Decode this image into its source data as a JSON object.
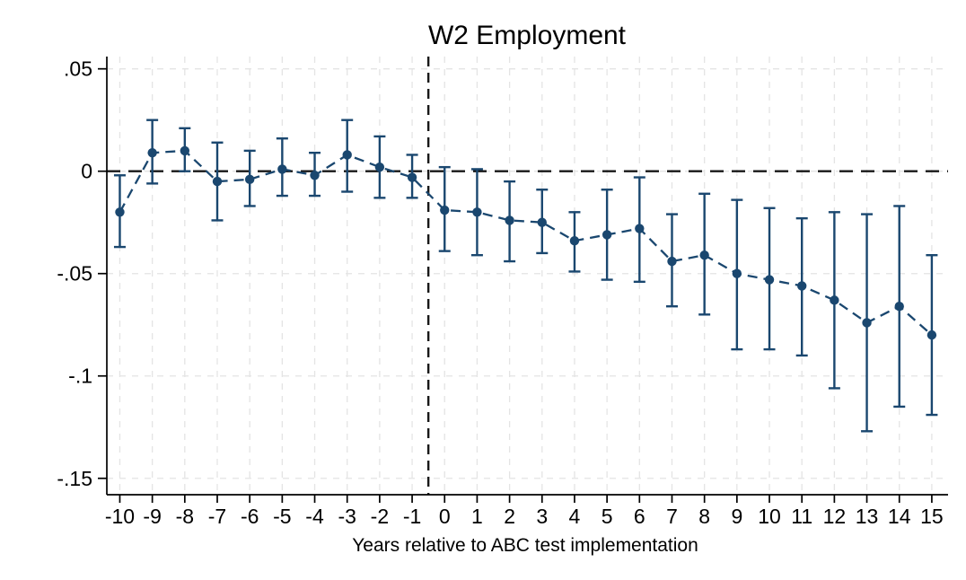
{
  "chart_data": {
    "type": "line",
    "title": "W2 Employment",
    "xlabel": "Years relative to ABC test implementation",
    "ylabel": "",
    "x": [
      -10,
      -9,
      -8,
      -7,
      -6,
      -5,
      -4,
      -3,
      -2,
      -1,
      0,
      1,
      2,
      3,
      4,
      5,
      6,
      7,
      8,
      9,
      10,
      11,
      12,
      13,
      14,
      15
    ],
    "series": [
      {
        "name": "Point estimate",
        "values": [
          -0.02,
          0.009,
          0.01,
          -0.005,
          -0.004,
          0.001,
          -0.002,
          0.008,
          0.002,
          -0.003,
          -0.019,
          -0.02,
          -0.024,
          -0.025,
          -0.034,
          -0.031,
          -0.028,
          -0.044,
          -0.041,
          -0.05,
          -0.053,
          -0.056,
          -0.063,
          -0.074,
          -0.066,
          -0.08
        ]
      },
      {
        "name": "95% CI lower",
        "values": [
          -0.037,
          -0.006,
          0.0,
          -0.024,
          -0.017,
          -0.012,
          -0.012,
          -0.01,
          -0.013,
          -0.013,
          -0.039,
          -0.041,
          -0.044,
          -0.04,
          -0.049,
          -0.053,
          -0.054,
          -0.066,
          -0.07,
          -0.087,
          -0.087,
          -0.09,
          -0.106,
          -0.127,
          -0.115,
          -0.119
        ]
      },
      {
        "name": "95% CI upper",
        "values": [
          -0.002,
          0.025,
          0.021,
          0.014,
          0.01,
          0.016,
          0.009,
          0.025,
          0.017,
          0.008,
          0.002,
          0.001,
          -0.005,
          -0.009,
          -0.02,
          -0.009,
          -0.003,
          -0.021,
          -0.011,
          -0.014,
          -0.018,
          -0.023,
          -0.02,
          -0.021,
          -0.017,
          -0.041
        ]
      }
    ],
    "xtick_labels": [
      "-10",
      "-9",
      "-8",
      "-7",
      "-6",
      "-5",
      "-4",
      "-3",
      "-2",
      "-1",
      "0",
      "1",
      "2",
      "3",
      "4",
      "5",
      "6",
      "7",
      "8",
      "9",
      "10",
      "11",
      "12",
      "13",
      "14",
      "15"
    ],
    "ytick_values": [
      0.05,
      0,
      -0.05,
      -0.1,
      -0.15
    ],
    "ytick_labels": [
      ".05",
      "0",
      "-.05",
      "-.1",
      "-.15"
    ],
    "xlim": [
      -10.4,
      15.5
    ],
    "ylim": [
      -0.158,
      0.056
    ],
    "reference_lines": {
      "horizontal_y": 0,
      "vertical_x": -0.5
    },
    "grid": "on",
    "legend": "none",
    "marker": "filled-circle",
    "line_style": "dashed",
    "colors": {
      "series": "#1a476f",
      "reference": "#181818",
      "grid": "#e4e4e4",
      "axis": "#000000",
      "background": "#ffffff"
    }
  }
}
